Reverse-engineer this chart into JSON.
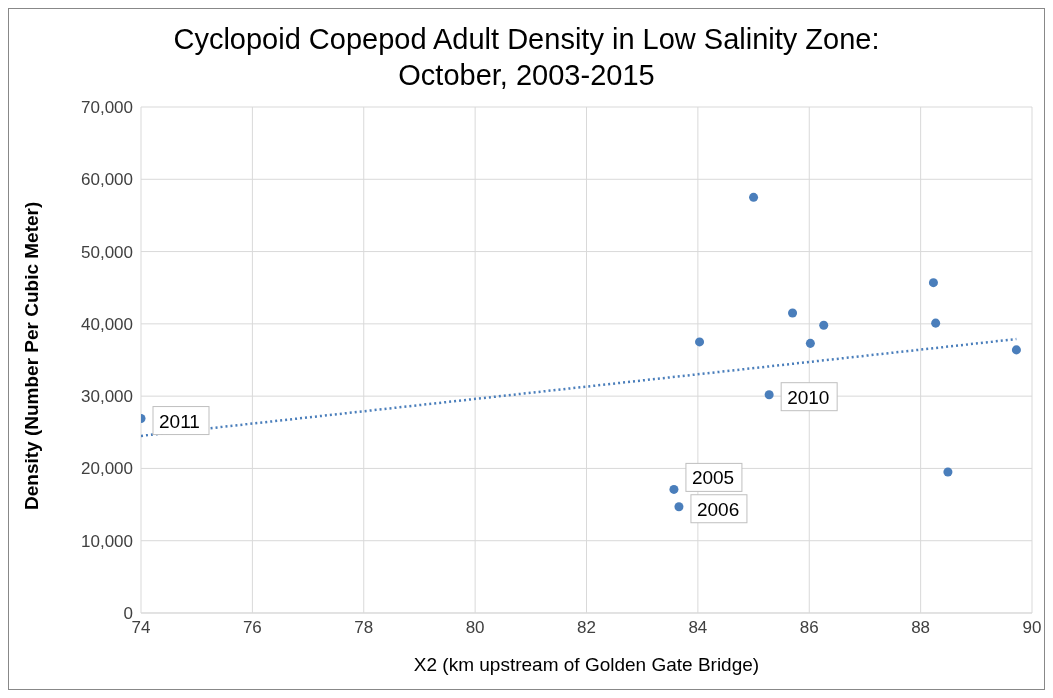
{
  "chart_data": {
    "type": "scatter",
    "title": "Cyclopoid Copepod Adult Density in Low Salinity Zone: October, 2003-2015",
    "xlabel": "X2 (km upstream of Golden Gate Bridge)",
    "ylabel": "Density (Number Per Cubic Meter)",
    "xlim": [
      74,
      90
    ],
    "xticks": [
      74,
      76,
      78,
      80,
      82,
      84,
      86,
      88,
      90
    ],
    "ylim": [
      0,
      70000
    ],
    "yticks": [
      0,
      {
        "value": 10000,
        "label": "10,000"
      },
      {
        "value": 20000,
        "label": "20,000"
      },
      {
        "value": 30000,
        "label": "30,000"
      },
      {
        "value": 40000,
        "label": "40,000"
      },
      {
        "value": 50000,
        "label": "50,000"
      },
      {
        "value": 60000,
        "label": "60,000"
      },
      {
        "value": 70000,
        "label": "70,000"
      }
    ],
    "grid": true,
    "marker": "circle",
    "series": [
      {
        "type": "scatter",
        "color": "#4a7ebb",
        "x": [
          74.0,
          83.57,
          83.66,
          84.03,
          85.0,
          85.28,
          85.7,
          86.02,
          86.26,
          88.23,
          88.27,
          88.49,
          89.72
        ],
        "values": [
          26900,
          17100,
          14700,
          37500,
          57500,
          30200,
          41500,
          37300,
          39800,
          45700,
          40100,
          19500,
          36400
        ]
      },
      {
        "type": "line",
        "color": "#4a7ebb",
        "x": [
          74.0,
          89.72
        ],
        "values": [
          24500,
          37900
        ],
        "line_style": "dotted",
        "marker": "none"
      }
    ],
    "annotations": [
      {
        "text": "2011",
        "x": 74.0,
        "y": 26900
      },
      {
        "text": "2005",
        "x": 83.57,
        "y": 17100
      },
      {
        "text": "2006",
        "x": 83.66,
        "y": 14700
      },
      {
        "text": "2010",
        "x": 85.28,
        "y": 30200
      }
    ]
  }
}
